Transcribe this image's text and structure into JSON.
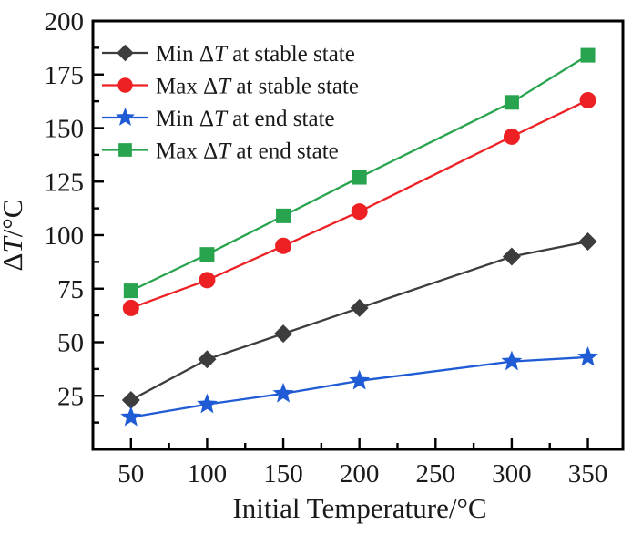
{
  "figure": {
    "background": "#ffffff",
    "frame_color": "#000000",
    "text_color": "#1a1a1a"
  },
  "chart_data": {
    "type": "line",
    "x": [
      50,
      100,
      150,
      200,
      300,
      350
    ],
    "series": [
      {
        "name": "Min ΔT at stable state",
        "marker": "diamond",
        "color": "#3d3d3d",
        "values": [
          23,
          42,
          54,
          66,
          90,
          97
        ]
      },
      {
        "name": "Max ΔT at stable state",
        "marker": "circle",
        "color": "#ed2024",
        "values": [
          66,
          79,
          95,
          111,
          146,
          163
        ]
      },
      {
        "name": "Min ΔT at end state",
        "marker": "star",
        "color": "#1f5bd5",
        "values": [
          15,
          21,
          26,
          32,
          41,
          43
        ]
      },
      {
        "name": "Max ΔT at end state",
        "marker": "square",
        "color": "#28a44e",
        "values": [
          74,
          91,
          109,
          127,
          162,
          184
        ]
      }
    ],
    "xlabel": "Initial Temperature/°C",
    "ylabel": "ΔT/°C",
    "xlim": [
      25,
      373
    ],
    "ylim": [
      0,
      200
    ],
    "x_ticks": [
      50,
      100,
      150,
      200,
      250,
      300,
      350
    ],
    "x_tick_labels": [
      "50",
      "100",
      "150",
      "200",
      "250",
      "300",
      "350"
    ],
    "y_ticks": [
      25,
      50,
      75,
      100,
      125,
      150,
      175,
      200
    ],
    "y_tick_labels": [
      "25",
      "50",
      "75",
      "100",
      "125",
      "150",
      "175",
      "200"
    ],
    "x_minor_ticks": [
      75,
      125,
      175,
      225,
      275,
      325
    ],
    "y_minor_ticks": [
      12.5,
      37.5,
      62.5,
      87.5,
      112.5,
      137.5,
      162.5,
      187.5
    ],
    "grid": false,
    "legend_position": "top-left"
  }
}
